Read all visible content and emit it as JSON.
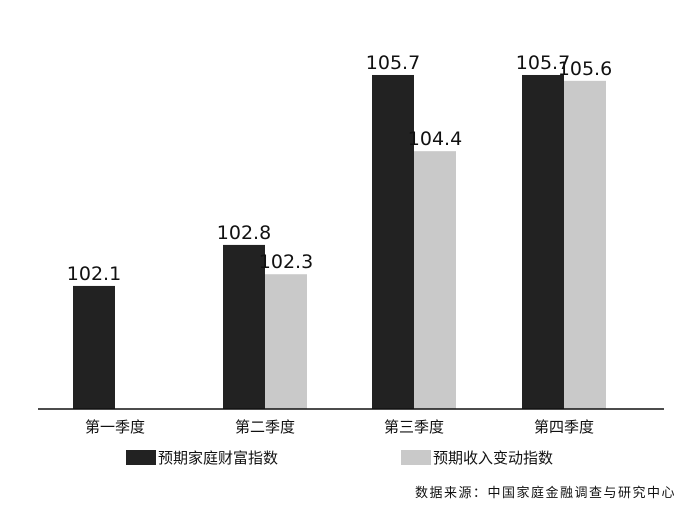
{
  "chart_data": {
    "type": "bar",
    "categories": [
      "第一季度",
      "第二季度",
      "第三季度",
      "第四季度"
    ],
    "series": [
      {
        "name": "预期家庭财富指数",
        "values": [
          102.1,
          102.8,
          105.7,
          105.7
        ],
        "color": "#222222"
      },
      {
        "name": "预期收入变动指数",
        "values": [
          null,
          102.3,
          104.4,
          105.6
        ],
        "color": "#c9c9c9"
      }
    ],
    "data_labels": [
      [
        "102.1",
        "102.8",
        "105.7",
        "105.7"
      ],
      [
        "",
        "102.3",
        "104.4",
        "105.6"
      ]
    ],
    "ylim": [
      100,
      106.6
    ],
    "grid": false,
    "legend_position": "bottom"
  },
  "source": "数据来源：中国家庭金融调查与研究中心"
}
